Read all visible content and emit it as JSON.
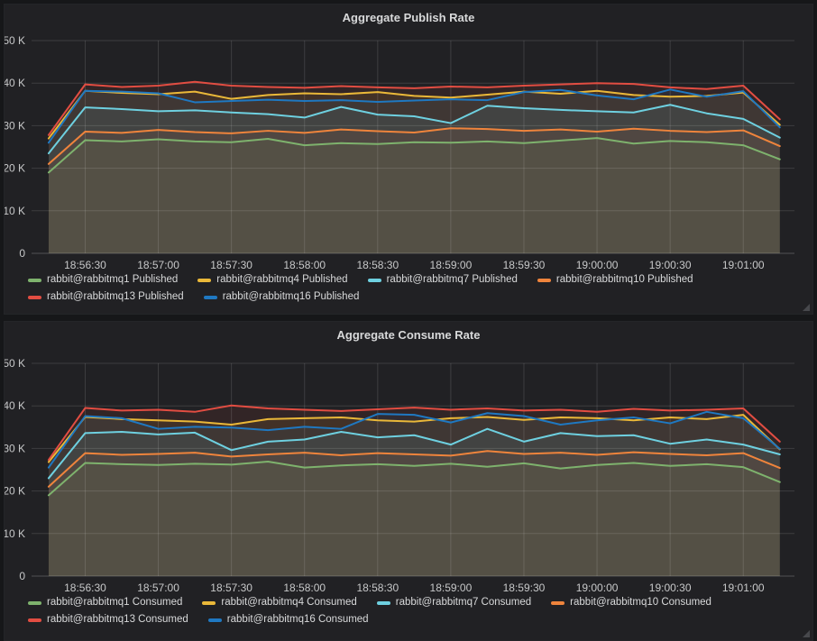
{
  "theme": {
    "page_bg": "#161719",
    "panel_bg": "#212124",
    "grid_color": "rgba(255,255,255,0.13)",
    "baseline_color": "rgba(255,255,255,0.22)",
    "title_text_color": "#d8d9da",
    "axis_text_color": "#c7c8c9",
    "legend_text_color": "#d8d9da"
  },
  "icons": {
    "resize_handle": "panel-resize-grip"
  },
  "chart_data": [
    {
      "type": "line",
      "title": "Aggregate Publish Rate",
      "xlabel": "",
      "ylabel": "",
      "y_unit": "K (thousands of messages/s)",
      "ylim": [
        0,
        50
      ],
      "grid": true,
      "legend_position": "bottom-left",
      "fill_opacity": 0.09,
      "ytick_values": [
        0,
        10,
        20,
        30,
        40,
        50
      ],
      "ytick_labels": [
        "0",
        "10 K",
        "20 K",
        "30 K",
        "40 K",
        "50 K"
      ],
      "x_domain": [
        "18:56:08",
        "19:01:21"
      ],
      "xtick_labels": [
        "18:56:30",
        "18:57:00",
        "18:57:30",
        "18:58:00",
        "18:58:30",
        "18:59:00",
        "18:59:30",
        "19:00:00",
        "19:00:30",
        "19:01:00"
      ],
      "x": [
        "18:56:15",
        "18:56:30",
        "18:56:45",
        "18:57:00",
        "18:57:15",
        "18:57:30",
        "18:57:45",
        "18:58:00",
        "18:58:15",
        "18:58:30",
        "18:58:45",
        "18:59:00",
        "18:59:15",
        "18:59:30",
        "18:59:45",
        "19:00:00",
        "19:00:15",
        "19:00:30",
        "19:00:45",
        "19:01:00",
        "19:01:15"
      ],
      "series": [
        {
          "name": "rabbit@rabbitmq1 Published",
          "color": "#7EB26D",
          "values": [
            19.0,
            26.6,
            26.3,
            26.8,
            26.3,
            26.1,
            26.9,
            25.4,
            25.9,
            25.7,
            26.1,
            26.0,
            26.3,
            25.9,
            26.5,
            27.1,
            25.8,
            26.4,
            26.1,
            25.4,
            22.1
          ]
        },
        {
          "name": "rabbit@rabbitmq4 Published",
          "color": "#EAB839",
          "values": [
            27.0,
            38.2,
            37.7,
            37.4,
            38.0,
            36.3,
            37.2,
            37.6,
            37.4,
            37.9,
            37.0,
            36.6,
            37.3,
            38.0,
            37.5,
            38.2,
            37.2,
            36.8,
            37.0,
            37.8,
            30.2
          ]
        },
        {
          "name": "rabbit@rabbitmq7 Published",
          "color": "#6ED0E0",
          "values": [
            23.5,
            34.3,
            33.9,
            33.4,
            33.6,
            33.1,
            32.7,
            31.9,
            34.4,
            32.6,
            32.2,
            30.6,
            34.7,
            34.1,
            33.7,
            33.4,
            33.1,
            34.9,
            32.9,
            31.6,
            27.2
          ]
        },
        {
          "name": "rabbit@rabbitmq10 Published",
          "color": "#EF843C",
          "values": [
            21.0,
            28.6,
            28.3,
            29.0,
            28.5,
            28.2,
            28.8,
            28.3,
            29.1,
            28.7,
            28.4,
            29.4,
            29.2,
            28.8,
            29.1,
            28.6,
            29.3,
            28.8,
            28.5,
            28.9,
            25.2
          ]
        },
        {
          "name": "rabbit@rabbitmq13 Published",
          "color": "#E24D42",
          "values": [
            27.8,
            39.7,
            39.1,
            39.4,
            40.3,
            39.4,
            39.1,
            38.9,
            39.3,
            39.0,
            38.8,
            39.2,
            39.0,
            39.4,
            39.7,
            40.0,
            39.8,
            39.0,
            38.6,
            39.4,
            31.5
          ]
        },
        {
          "name": "rabbit@rabbitmq16 Published",
          "color": "#1F78C1",
          "values": [
            26.0,
            38.2,
            38.0,
            37.6,
            35.5,
            35.8,
            36.1,
            35.8,
            36.0,
            35.6,
            35.9,
            36.2,
            36.0,
            37.9,
            38.4,
            37.1,
            36.2,
            38.5,
            36.8,
            38.1,
            29.6
          ]
        }
      ]
    },
    {
      "type": "line",
      "title": "Aggregate Consume Rate",
      "xlabel": "",
      "ylabel": "",
      "y_unit": "K (thousands of messages/s)",
      "ylim": [
        0,
        50
      ],
      "grid": true,
      "legend_position": "bottom-left",
      "fill_opacity": 0.09,
      "ytick_values": [
        0,
        10,
        20,
        30,
        40,
        50
      ],
      "ytick_labels": [
        "0",
        "10 K",
        "20 K",
        "30 K",
        "40 K",
        "50 K"
      ],
      "x_domain": [
        "18:56:08",
        "19:01:21"
      ],
      "xtick_labels": [
        "18:56:30",
        "18:57:00",
        "18:57:30",
        "18:58:00",
        "18:58:30",
        "18:59:00",
        "18:59:30",
        "19:00:00",
        "19:00:30",
        "19:01:00"
      ],
      "x": [
        "18:56:15",
        "18:56:30",
        "18:56:45",
        "18:57:00",
        "18:57:15",
        "18:57:30",
        "18:57:45",
        "18:58:00",
        "18:58:15",
        "18:58:30",
        "18:58:45",
        "18:59:00",
        "18:59:15",
        "18:59:30",
        "18:59:45",
        "19:00:00",
        "19:00:15",
        "19:00:30",
        "19:00:45",
        "19:01:00",
        "19:01:15"
      ],
      "series": [
        {
          "name": "rabbit@rabbitmq1 Consumed",
          "color": "#7EB26D",
          "values": [
            19.0,
            26.6,
            26.3,
            26.1,
            26.4,
            26.2,
            26.9,
            25.5,
            26.0,
            26.3,
            25.9,
            26.4,
            25.7,
            26.5,
            25.3,
            26.1,
            26.6,
            25.9,
            26.3,
            25.6,
            22.1
          ]
        },
        {
          "name": "rabbit@rabbitmq4 Consumed",
          "color": "#EAB839",
          "values": [
            26.8,
            37.4,
            36.9,
            36.6,
            36.3,
            35.6,
            36.9,
            37.1,
            37.3,
            36.6,
            36.3,
            37.1,
            37.4,
            36.7,
            37.3,
            37.1,
            36.6,
            37.3,
            36.9,
            37.9,
            29.8
          ]
        },
        {
          "name": "rabbit@rabbitmq7 Consumed",
          "color": "#6ED0E0",
          "values": [
            23.0,
            33.6,
            33.9,
            33.3,
            33.7,
            29.6,
            31.6,
            32.1,
            33.9,
            32.6,
            33.1,
            30.9,
            34.6,
            31.6,
            33.6,
            32.9,
            33.1,
            31.1,
            32.1,
            30.9,
            28.6
          ]
        },
        {
          "name": "rabbit@rabbitmq10 Consumed",
          "color": "#EF843C",
          "values": [
            21.0,
            28.9,
            28.5,
            28.7,
            29.0,
            28.1,
            28.6,
            29.0,
            28.4,
            28.9,
            28.6,
            28.3,
            29.4,
            28.7,
            29.0,
            28.5,
            29.1,
            28.7,
            28.4,
            28.9,
            25.4
          ]
        },
        {
          "name": "rabbit@rabbitmq13 Consumed",
          "color": "#E24D42",
          "values": [
            27.3,
            39.5,
            38.9,
            39.1,
            38.6,
            40.1,
            39.4,
            39.1,
            38.8,
            39.2,
            39.6,
            39.1,
            39.4,
            38.9,
            39.1,
            38.6,
            39.3,
            38.9,
            39.1,
            39.4,
            31.6
          ]
        },
        {
          "name": "rabbit@rabbitmq16 Consumed",
          "color": "#1F78C1",
          "values": [
            25.5,
            37.6,
            37.1,
            34.6,
            35.1,
            34.9,
            34.3,
            35.1,
            34.6,
            38.1,
            37.9,
            36.1,
            38.3,
            37.6,
            35.6,
            36.6,
            37.3,
            35.9,
            38.6,
            37.1,
            29.9
          ]
        }
      ]
    }
  ]
}
